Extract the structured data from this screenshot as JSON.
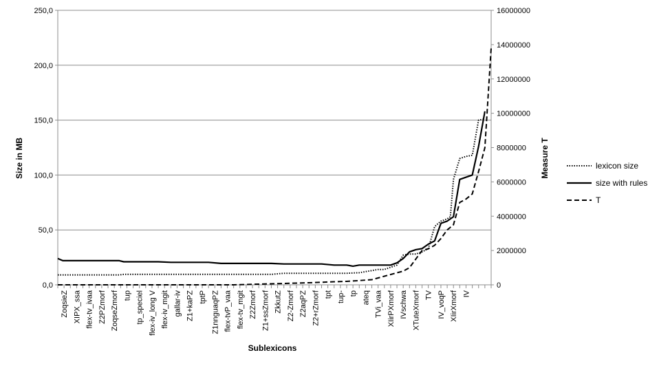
{
  "chart_data": {
    "type": "line",
    "xlabel": "Sublexicons",
    "ylabel": "Size in MB",
    "y2label": "Measure T",
    "ylim": [
      0,
      250
    ],
    "y2lim": [
      0,
      16000000
    ],
    "yticks": [
      "0,0",
      "50,0",
      "100,0",
      "150,0",
      "200,0",
      "250,0"
    ],
    "y2ticks": [
      "0",
      "2000000",
      "4000000",
      "6000000",
      "8000000",
      "10000000",
      "12000000",
      "14000000",
      "16000000"
    ],
    "grid": "horizontal",
    "legend_position": "right",
    "categories": [
      "ZoqsieZ",
      "XIPX_ssa",
      "flex-tv_ivaa",
      "Z2PZmorf",
      "ZoqseZmorf",
      "tup",
      "tp_speciel",
      "flex-iv_long V",
      "flex-iv_mgit",
      "gallar-iv",
      "Z1+kaPZ",
      "tptP",
      "Z1nnguaqPZ",
      "flex-tvP_vaa",
      "flex-tv_mgit",
      "Z2Zmorf",
      "Z1+ssZmorf",
      "ZkkutZ",
      "Z2-Zmorf",
      "Z2aqPZ",
      "Z2+rZmorf",
      "tpt",
      "tup-",
      "tp",
      "ateq",
      "TVi_vaa",
      "XIirPXmorf",
      "IVschwa",
      "XTuteXmorf",
      "TV",
      "IV_voqP",
      "XIirXmorf",
      "IV"
    ],
    "series": [
      {
        "name": "lexicon size",
        "axis": "left",
        "style": "dotted",
        "x": [
          0,
          3,
          6,
          9,
          9.8,
          10.5,
          12,
          14,
          16,
          18,
          20,
          22,
          24,
          26,
          28,
          30,
          32,
          34,
          36,
          38,
          40,
          42,
          44,
          46,
          48,
          49,
          50,
          51,
          52,
          53,
          54,
          55,
          56,
          57,
          57.5,
          58,
          59,
          60,
          61,
          62,
          62.5,
          63,
          64,
          65,
          66,
          67,
          68
        ],
        "values": [
          9,
          9,
          9,
          9,
          9,
          9.5,
          9.5,
          9.5,
          9.5,
          9.5,
          9.5,
          9.5,
          9.5,
          9.5,
          9.5,
          9.5,
          9.5,
          9.5,
          10.5,
          10.5,
          10.5,
          10.5,
          10.5,
          10.5,
          11,
          12,
          13,
          14,
          14,
          16,
          18,
          27,
          28,
          28,
          29,
          30,
          33,
          53,
          58,
          60,
          62,
          96,
          115,
          117,
          118,
          150,
          151
        ]
      },
      {
        "name": "size with rules",
        "axis": "left",
        "style": "solid",
        "x": [
          0,
          0.8,
          2,
          4,
          6,
          8,
          9.8,
          10.5,
          12,
          14,
          16,
          18,
          20,
          22,
          24,
          26,
          28,
          30,
          32,
          34,
          36,
          38,
          40,
          42,
          44,
          46,
          47,
          48,
          49,
          50,
          51,
          52,
          53,
          54,
          55,
          56,
          57,
          58,
          59,
          60,
          61,
          62,
          63,
          64,
          65,
          66,
          67,
          68
        ],
        "values": [
          24,
          22,
          22,
          22,
          22,
          22,
          22,
          21,
          21,
          21,
          21,
          20.5,
          20.5,
          20.5,
          20.5,
          19.5,
          19.5,
          19.5,
          19.5,
          19.5,
          19,
          19,
          19,
          19,
          18,
          18,
          17,
          18,
          18,
          18,
          18,
          18,
          18,
          20,
          24,
          30,
          32,
          33,
          37,
          40,
          56,
          58,
          62,
          96,
          98,
          100,
          126,
          158
        ]
      },
      {
        "name": "T",
        "axis": "right",
        "style": "dashed",
        "x": [
          0,
          2,
          4,
          6,
          8,
          10,
          12,
          14,
          16,
          18,
          20,
          22,
          24,
          26,
          28,
          30,
          32,
          34,
          36,
          38,
          40,
          42,
          44,
          46,
          48,
          50,
          51,
          52,
          53,
          54,
          55,
          56,
          57,
          58,
          59,
          60,
          61,
          62,
          63,
          64,
          65,
          66,
          67,
          68,
          69
        ],
        "values": [
          0,
          0,
          0,
          0,
          0,
          0,
          0,
          0,
          0,
          0,
          0,
          0,
          0,
          0,
          0,
          20000,
          40000,
          60000,
          80000,
          100000,
          120000,
          150000,
          180000,
          200000,
          250000,
          300000,
          400000,
          500000,
          600000,
          700000,
          800000,
          1000000,
          1500000,
          2000000,
          2100000,
          2300000,
          2700000,
          3200000,
          3500000,
          4800000,
          5000000,
          5300000,
          6600000,
          8000000,
          13800000
        ]
      }
    ]
  }
}
